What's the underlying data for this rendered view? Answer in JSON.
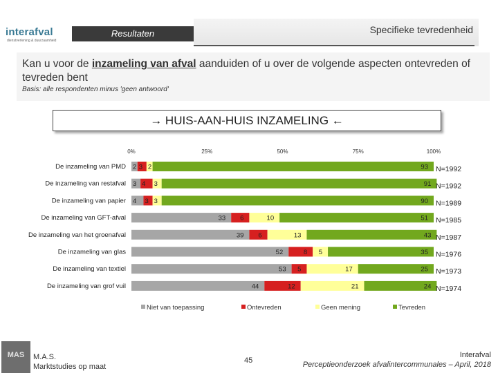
{
  "header": {
    "logo_main": "interafval",
    "logo_tagline": "dienstverlening & duurzaamheid",
    "section_label": "Resultaten",
    "topic_label": "Specifieke tevredenheid"
  },
  "question": {
    "text_before": "Kan u voor de ",
    "text_emphasis": "inzameling van afval",
    "text_after": " aanduiden of u over de volgende aspecten ontevreden of tevreden bent",
    "basis": "Basis: alle respondenten minus 'geen antwoord'"
  },
  "section_title": "→ HUIS-AAN-HUIS INZAMELING ←",
  "colors": {
    "niet_van_toepassing": "#a6a6a6",
    "ontevreden": "#d62020",
    "geen_mening": "#ffff99",
    "tevreden": "#72a81e"
  },
  "chart_data": {
    "type": "bar",
    "orientation": "horizontal",
    "stacked": true,
    "xlim": [
      0,
      100
    ],
    "x_tick_labels": [
      "0%",
      "25%",
      "50%",
      "75%",
      "100%"
    ],
    "x_tick_values": [
      0,
      25,
      50,
      75,
      100
    ],
    "categories": [
      "De inzameling van PMD",
      "De inzameling van restafval",
      "De inzameling van papier",
      "De inzameling van GFT-afval",
      "De inzameling van het groenafval",
      "De inzameling van glas",
      "De inzameling van textiel",
      "De inzameling van grof vuil"
    ],
    "series": [
      {
        "name": "Niet van toepassing",
        "values": [
          2,
          3,
          4,
          33,
          39,
          52,
          53,
          44
        ]
      },
      {
        "name": "Ontevreden",
        "values": [
          3,
          4,
          3,
          6,
          6,
          8,
          5,
          12
        ]
      },
      {
        "name": "Geen mening",
        "values": [
          2,
          3,
          3,
          10,
          13,
          5,
          17,
          21
        ]
      },
      {
        "name": "Tevreden",
        "values": [
          93,
          91,
          90,
          51,
          43,
          35,
          25,
          24
        ]
      }
    ],
    "n_labels": [
      "N=1992",
      "N=1992",
      "N=1989",
      "N=1985",
      "N=1987",
      "N=1976",
      "N=1973",
      "N=1974"
    ],
    "legend_position": "bottom"
  },
  "footer": {
    "company_logo": "MAS",
    "company_line1": "M.A.S.",
    "company_line2": "Marktstudies op maat",
    "page_number": "45",
    "client": "Interafval",
    "report": "Perceptieonderzoek afvalintercommunales – April, 2018"
  }
}
